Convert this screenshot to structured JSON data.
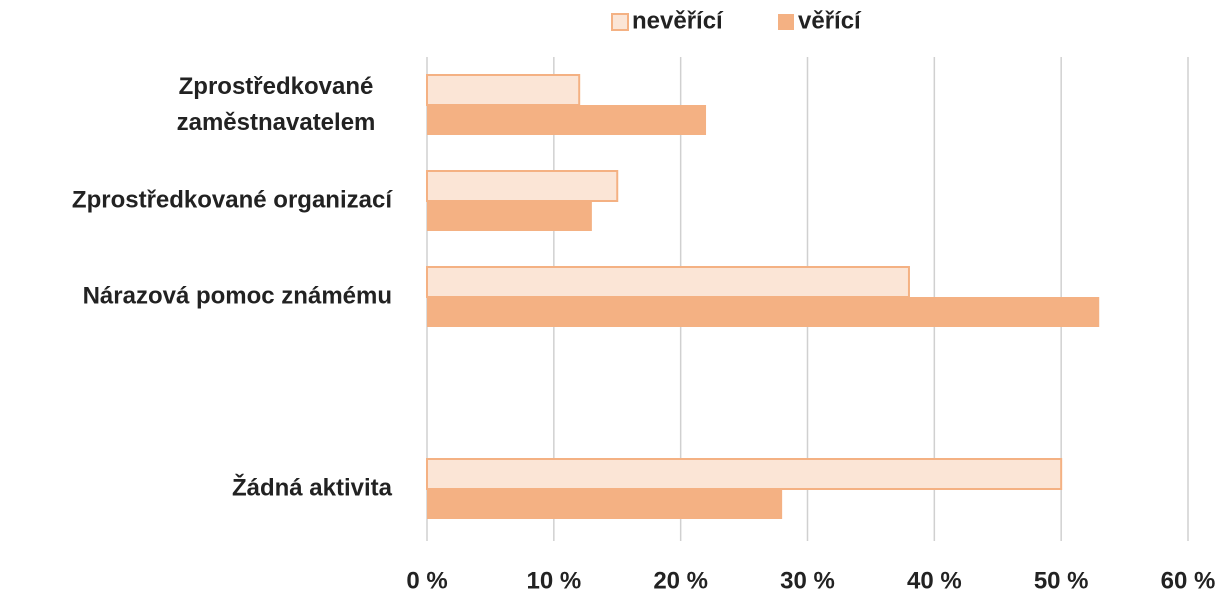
{
  "chart_data": {
    "type": "hbar",
    "categories": [
      "Zprostředkované zaměstnavatelem",
      "Zprostředkované organizací",
      "Nárazová pomoc známému",
      null,
      "Žádná aktivita"
    ],
    "series": [
      {
        "name": "nevěřící",
        "color": "#fbe5d6",
        "stroke": "#f4b183",
        "values": [
          12,
          15,
          38,
          null,
          50
        ]
      },
      {
        "name": "věřící",
        "color": "#f4b183",
        "values": [
          22,
          13,
          53,
          null,
          28
        ]
      }
    ],
    "xlim": [
      0,
      60
    ],
    "xticks": [
      {
        "value": 0,
        "label": "0 %"
      },
      {
        "value": 10,
        "label": "10 %"
      },
      {
        "value": 20,
        "label": "20 %"
      },
      {
        "value": 30,
        "label": "30 %"
      },
      {
        "value": 40,
        "label": "40 %"
      },
      {
        "value": 50,
        "label": "50 %"
      },
      {
        "value": 60,
        "label": "60 %"
      }
    ],
    "grid": true,
    "legend": "top"
  }
}
